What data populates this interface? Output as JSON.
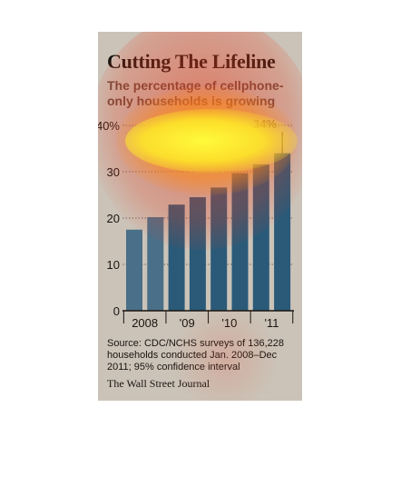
{
  "title": "Cutting The Lifeline",
  "subtitle": "The percentage of cellphone-only households is growing",
  "source": "Source: CDC/NCHS surveys of 136,228 households conducted Jan. 2008–Dec 2011; 95% confidence interval",
  "credit": "The Wall Street Journal",
  "colors": {
    "background": "#cbc3b8",
    "bar": "#2a5a78",
    "bar_light": "#4a6f88"
  },
  "chart_data": {
    "type": "bar",
    "values": [
      17.5,
      20.2,
      22.9,
      24.5,
      26.6,
      29.7,
      31.6,
      34.0
    ],
    "x_tick_labels": [
      "2008",
      "'09",
      "'10",
      "'11"
    ],
    "y_ticks": [
      0,
      10,
      20,
      30,
      40
    ],
    "y_tick_labels": [
      "0",
      "10",
      "20",
      "30",
      "40%"
    ],
    "annotation": "34%",
    "ylim": [
      0,
      40
    ],
    "grid": true
  }
}
